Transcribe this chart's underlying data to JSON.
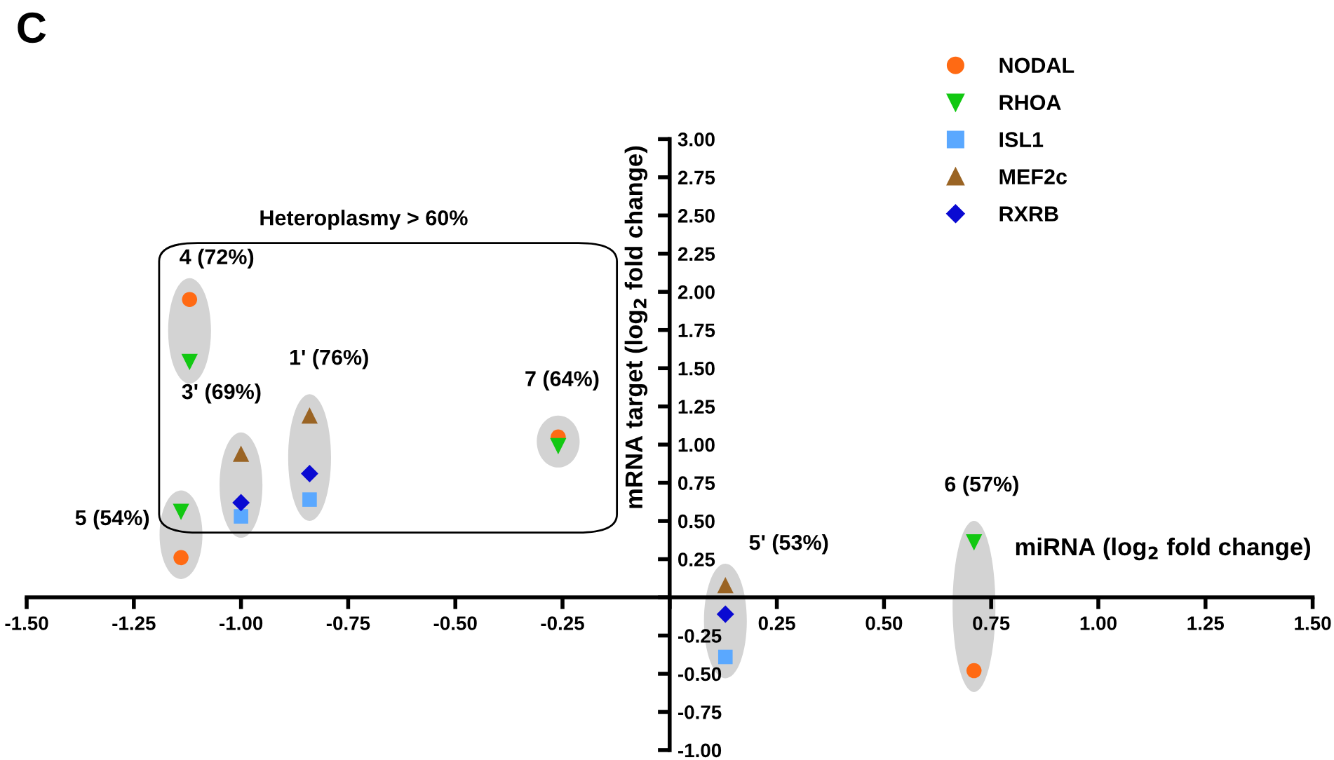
{
  "chart_data": {
    "type": "scatter",
    "xlabel": "miRNA (log$_{2}$ fold change)",
    "ylabel": "mRNA target (log$_{2}$ fold change)",
    "series": [
      {
        "name": "NODAL",
        "color": "#ff6a13",
        "marker": "circle",
        "x": [
          -1.12,
          -1.14,
          -0.26,
          0.71
        ],
        "values": [
          1.95,
          0.26,
          1.05,
          -0.48
        ]
      },
      {
        "name": "RHOA",
        "color": "#12c812",
        "marker": "triangle_down",
        "x": [
          -1.12,
          -1.14,
          -0.26,
          0.71
        ],
        "values": [
          1.54,
          0.56,
          0.99,
          0.36
        ]
      },
      {
        "name": "ISL1",
        "color": "#5aa8ff",
        "marker": "square",
        "x": [
          -1.0,
          -0.84,
          0.13
        ],
        "values": [
          0.53,
          0.64,
          -0.39
        ]
      },
      {
        "name": "MEF2c",
        "color": "#9a6424",
        "marker": "triangle",
        "x": [
          -1.0,
          -0.84,
          0.13
        ],
        "values": [
          0.94,
          1.19,
          0.08
        ]
      },
      {
        "name": "RXRB",
        "color": "#0a0ad2",
        "marker": "diamond",
        "x": [
          -1.0,
          -0.84,
          0.13
        ],
        "values": [
          0.62,
          0.81,
          -0.11
        ]
      }
    ],
    "xlim": [
      -1.5,
      1.5
    ],
    "ylim": [
      -1.0,
      3.0
    ],
    "xticks": [
      {
        "value": -1.5,
        "label": "-1.50"
      },
      {
        "value": -1.25,
        "label": "-1.25"
      },
      {
        "value": -1.0,
        "label": "-1.00"
      },
      {
        "value": -0.75,
        "label": "-0.75"
      },
      {
        "value": -0.5,
        "label": "-0.50"
      },
      {
        "value": -0.25,
        "label": "-0.25"
      },
      {
        "value": 0,
        "label": null
      },
      {
        "value": 0.25,
        "label": "0.25"
      },
      {
        "value": 0.5,
        "label": "0.50"
      },
      {
        "value": 0.75,
        "label": "0.75"
      },
      {
        "value": 1.0,
        "label": "1.00"
      },
      {
        "value": 1.25,
        "label": "1.25"
      },
      {
        "value": 1.5,
        "label": "1.50"
      }
    ],
    "yticks": [
      {
        "value": -1.0,
        "label": "-1.00"
      },
      {
        "value": -0.75,
        "label": "-0.75"
      },
      {
        "value": -0.5,
        "label": "-0.50"
      },
      {
        "value": -0.25,
        "label": "-0.25"
      },
      {
        "value": 0,
        "label": null
      },
      {
        "value": 0.25,
        "label": "0.25"
      },
      {
        "value": 0.5,
        "label": "0.50"
      },
      {
        "value": 0.75,
        "label": "0.75"
      },
      {
        "value": 1.0,
        "label": "1.00"
      },
      {
        "value": 1.25,
        "label": "1.25"
      },
      {
        "value": 1.5,
        "label": "1.50"
      },
      {
        "value": 1.75,
        "label": "1.75"
      },
      {
        "value": 2.0,
        "label": "2.00"
      },
      {
        "value": 2.25,
        "label": "2.25"
      },
      {
        "value": 2.5,
        "label": "2.50"
      },
      {
        "value": 2.75,
        "label": "2.75"
      },
      {
        "value": 3.0,
        "label": "3.00"
      }
    ],
    "grid": false,
    "legend": "top right",
    "annotations": [
      "C",
      "Heteroplasmy > 60%",
      "4 (72%)",
      "5 (54%)",
      "7 (64%)",
      "6 (57%)",
      "3' (69%)",
      "1' (76%)",
      "5' (53%)"
    ]
  }
}
